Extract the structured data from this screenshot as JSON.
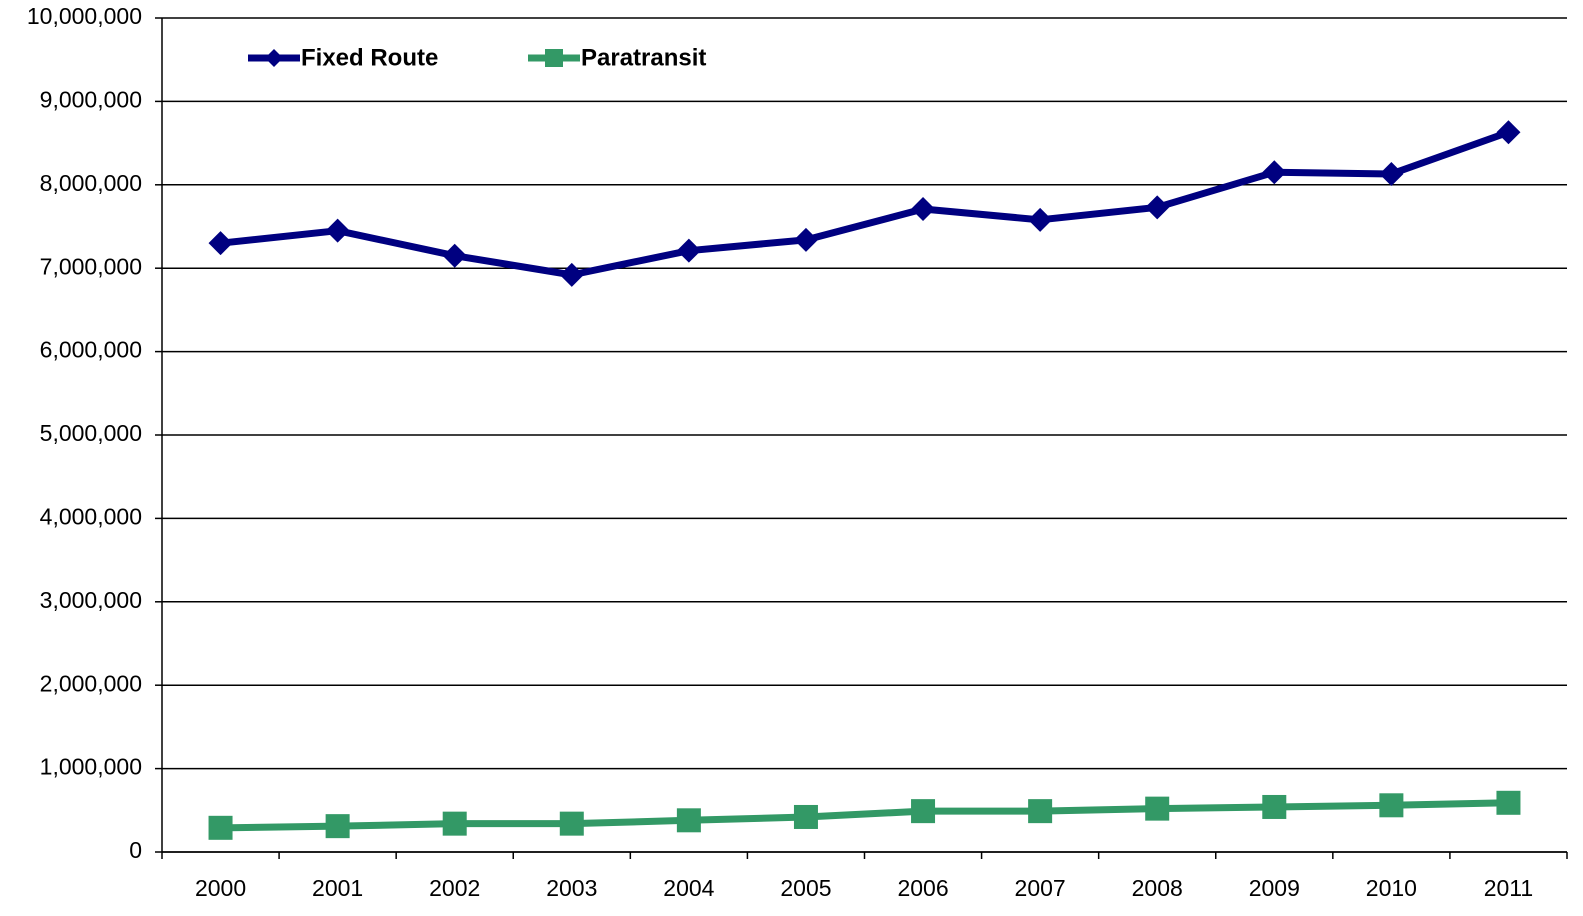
{
  "chart_data": {
    "type": "line",
    "categories": [
      "2000",
      "2001",
      "2002",
      "2003",
      "2004",
      "2005",
      "2006",
      "2007",
      "2008",
      "2009",
      "2010",
      "2011"
    ],
    "series": [
      {
        "name": "Fixed Route",
        "color": "#000080",
        "marker": "diamond",
        "values": [
          7300000,
          7450000,
          7150000,
          6920000,
          7210000,
          7340000,
          7710000,
          7580000,
          7730000,
          8150000,
          8130000,
          8630000
        ]
      },
      {
        "name": "Paratransit",
        "color": "#339966",
        "marker": "square",
        "values": [
          290000,
          310000,
          340000,
          340000,
          380000,
          420000,
          490000,
          490000,
          520000,
          540000,
          560000,
          590000
        ]
      }
    ],
    "ylim": [
      0,
      10000000
    ],
    "yticks": [
      0,
      {
        "value": 1000000,
        "label": "1,000,000"
      },
      {
        "value": 2000000,
        "label": "2,000,000"
      },
      {
        "value": 3000000,
        "label": "3,000,000"
      },
      {
        "value": 4000000,
        "label": "4,000,000"
      },
      {
        "value": 5000000,
        "label": "5,000,000"
      },
      {
        "value": 6000000,
        "label": "6,000,000"
      },
      {
        "value": 7000000,
        "label": "7,000,000"
      },
      {
        "value": 8000000,
        "label": "8,000,000"
      },
      {
        "value": 9000000,
        "label": "9,000,000"
      },
      {
        "value": 10000000,
        "label": "10,000,000"
      }
    ],
    "grid": true,
    "legend": "top-left"
  }
}
